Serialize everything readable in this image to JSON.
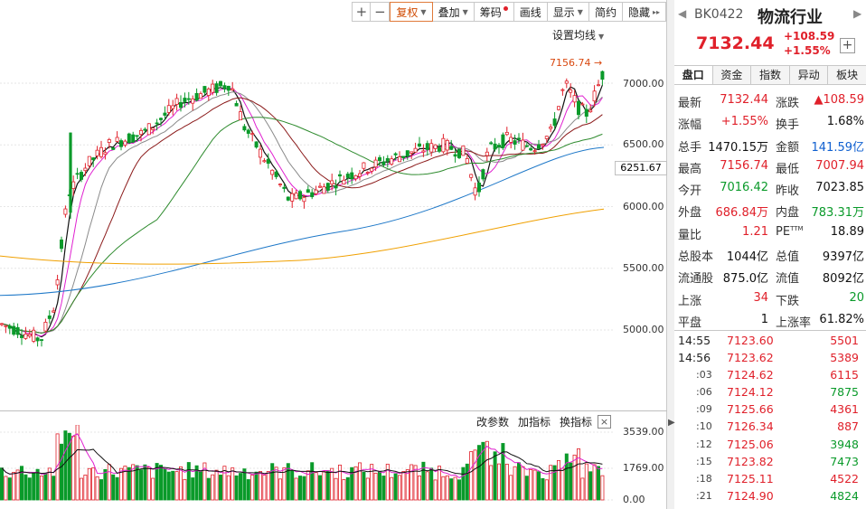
{
  "toolbar": {
    "zoom_in": "+",
    "zoom_out": "−",
    "fuquan": "复权",
    "diejia": "叠加",
    "chouma": "筹码",
    "huaxian": "画线",
    "xianshi": "显示",
    "jianyue": "简约",
    "yincang": "隐藏",
    "more": "▸▸",
    "ma_setting": "设置均线"
  },
  "main_chart": {
    "y_labels": [
      "7000.00",
      "6500.00",
      "6000.00",
      "5500.00",
      "5000.00"
    ],
    "high_marker": "7156.74",
    "current_price_box": "6251.67"
  },
  "volume_chart": {
    "tools": [
      "改参数",
      "加指标",
      "换指标"
    ],
    "close": "×",
    "y_labels": [
      "3539.00",
      "1769.00",
      "0.00"
    ]
  },
  "header": {
    "code": "BK0422",
    "name": "物流行业",
    "price": "7132.44",
    "change": "+108.59",
    "change_pct": "+1.55%",
    "add": "+"
  },
  "tabs": [
    "盘口",
    "资金",
    "指数",
    "异动",
    "板块"
  ],
  "stats": [
    {
      "l1": "最新",
      "v1": "7132.44",
      "c1": "red",
      "l2": "涨跌",
      "v2": "▲108.59",
      "c2": "red"
    },
    {
      "l1": "涨幅",
      "v1": "+1.55%",
      "c1": "red",
      "l2": "换手",
      "v2": "1.68%",
      "c2": "black"
    },
    {
      "l1": "总手",
      "v1": "1470.15万",
      "c1": "black",
      "l2": "金额",
      "v2": "141.59亿",
      "c2": "blue"
    },
    {
      "l1": "最高",
      "v1": "7156.74",
      "c1": "red",
      "l2": "最低",
      "v2": "7007.94",
      "c2": "red"
    },
    {
      "l1": "今开",
      "v1": "7016.42",
      "c1": "green",
      "l2": "昨收",
      "v2": "7023.85",
      "c2": "black"
    },
    {
      "l1": "外盘",
      "v1": "686.84万",
      "c1": "red",
      "l2": "内盘",
      "v2": "783.31万",
      "c2": "green"
    },
    {
      "l1": "量比",
      "v1": "1.21",
      "c1": "red",
      "l2": "PE",
      "v2": "18.89",
      "c2": "black"
    },
    {
      "l1": "总股本",
      "v1": "1044亿",
      "c1": "black",
      "l2": "总值",
      "v2": "9397亿",
      "c2": "black"
    },
    {
      "l1": "流通股",
      "v1": "875.0亿",
      "c1": "black",
      "l2": "流值",
      "v2": "8092亿",
      "c2": "black"
    },
    {
      "l1": "上涨",
      "v1": "34",
      "c1": "red",
      "l2": "下跌",
      "v2": "20",
      "c2": "green"
    },
    {
      "l1": "平盘",
      "v1": "1",
      "c1": "black",
      "l2": "上涨率",
      "v2": "61.82%",
      "c2": "black"
    }
  ],
  "pe_sup": "TTM",
  "ticks": [
    {
      "time": "14:55",
      "sub": false,
      "price": "7123.60",
      "vol": "5501",
      "vc": "red"
    },
    {
      "time": "14:56",
      "sub": false,
      "price": "7123.62",
      "vol": "5389",
      "vc": "red"
    },
    {
      "time": ":03",
      "sub": true,
      "price": "7124.62",
      "vol": "6115",
      "vc": "red"
    },
    {
      "time": ":06",
      "sub": true,
      "price": "7124.12",
      "vol": "7875",
      "vc": "green"
    },
    {
      "time": ":09",
      "sub": true,
      "price": "7125.66",
      "vol": "4361",
      "vc": "red"
    },
    {
      "time": ":10",
      "sub": true,
      "price": "7126.34",
      "vol": "887",
      "vc": "red"
    },
    {
      "time": ":12",
      "sub": true,
      "price": "7125.06",
      "vol": "3948",
      "vc": "green"
    },
    {
      "time": ":15",
      "sub": true,
      "price": "7123.82",
      "vol": "7473",
      "vc": "green"
    },
    {
      "time": ":18",
      "sub": true,
      "price": "7125.11",
      "vol": "4522",
      "vc": "red"
    },
    {
      "time": ":21",
      "sub": true,
      "price": "7124.90",
      "vol": "4824",
      "vc": "green"
    }
  ],
  "colors": {
    "up": "#e0202a",
    "down": "#0a9a2a",
    "ma5": "#111111",
    "ma10": "#e020d0",
    "ma20": "#8a8a8a",
    "ma30": "#8b1a1a",
    "ma60": "#2e8b2e",
    "ma120": "#1e78c8",
    "ma250": "#f0a000"
  }
}
